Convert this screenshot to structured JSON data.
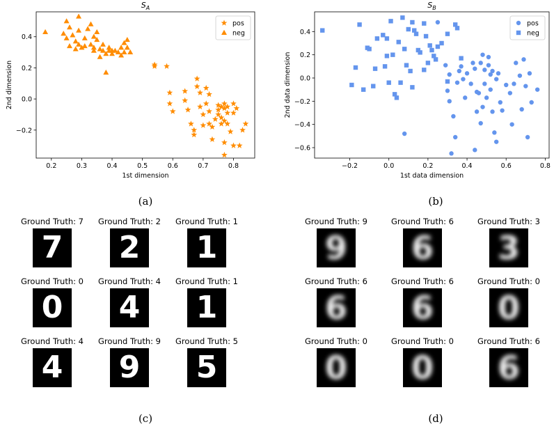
{
  "chart_data": [
    {
      "type": "scatter",
      "title": "S_A",
      "title_main": "S",
      "title_sub": "A",
      "xlabel": "1st dimension",
      "ylabel": "2nd dimension",
      "xlim": [
        0.15,
        0.87
      ],
      "ylim": [
        -0.38,
        0.56
      ],
      "xticks": [
        "0.2",
        "0.3",
        "0.4",
        "0.5",
        "0.6",
        "0.7",
        "0.8"
      ],
      "xtick_values": [
        0.2,
        0.3,
        0.4,
        0.5,
        0.6,
        0.7,
        0.8
      ],
      "yticks": [
        "0.4",
        "0.2",
        "0.0",
        "−0.2"
      ],
      "ytick_values": [
        0.4,
        0.2,
        0.0,
        -0.2
      ],
      "grid": false,
      "legend_position": "top-right",
      "color": "#ff8c00",
      "series": [
        {
          "name": "pos",
          "marker": "star",
          "points": [
            [
              0.54,
              0.22
            ],
            [
              0.54,
              0.21
            ],
            [
              0.58,
              0.21
            ],
            [
              0.59,
              0.04
            ],
            [
              0.59,
              -0.03
            ],
            [
              0.6,
              -0.08
            ],
            [
              0.64,
              0.05
            ],
            [
              0.64,
              -0.01
            ],
            [
              0.65,
              -0.07
            ],
            [
              0.66,
              -0.16
            ],
            [
              0.67,
              -0.2
            ],
            [
              0.67,
              -0.23
            ],
            [
              0.68,
              0.13
            ],
            [
              0.68,
              0.08
            ],
            [
              0.69,
              0.04
            ],
            [
              0.69,
              -0.05
            ],
            [
              0.7,
              -0.1
            ],
            [
              0.7,
              -0.17
            ],
            [
              0.71,
              0.07
            ],
            [
              0.71,
              -0.03
            ],
            [
              0.72,
              0.03
            ],
            [
              0.72,
              -0.08
            ],
            [
              0.72,
              -0.16
            ],
            [
              0.73,
              -0.18
            ],
            [
              0.73,
              -0.26
            ],
            [
              0.74,
              -0.13
            ],
            [
              0.75,
              -0.04
            ],
            [
              0.75,
              -0.07
            ],
            [
              0.75,
              -0.1
            ],
            [
              0.76,
              -0.05
            ],
            [
              0.76,
              -0.12
            ],
            [
              0.76,
              -0.16
            ],
            [
              0.77,
              -0.03
            ],
            [
              0.77,
              -0.06
            ],
            [
              0.77,
              -0.14
            ],
            [
              0.77,
              -0.28
            ],
            [
              0.77,
              -0.36
            ],
            [
              0.78,
              -0.05
            ],
            [
              0.78,
              -0.09
            ],
            [
              0.78,
              -0.16
            ],
            [
              0.79,
              -0.21
            ],
            [
              0.8,
              -0.03
            ],
            [
              0.8,
              -0.09
            ],
            [
              0.8,
              -0.3
            ],
            [
              0.81,
              -0.06
            ],
            [
              0.82,
              -0.3
            ],
            [
              0.83,
              -0.2
            ],
            [
              0.84,
              -0.16
            ]
          ]
        },
        {
          "name": "neg",
          "marker": "triangle",
          "points": [
            [
              0.18,
              0.43
            ],
            [
              0.24,
              0.42
            ],
            [
              0.25,
              0.5
            ],
            [
              0.25,
              0.39
            ],
            [
              0.26,
              0.34
            ],
            [
              0.26,
              0.46
            ],
            [
              0.27,
              0.41
            ],
            [
              0.28,
              0.37
            ],
            [
              0.28,
              0.32
            ],
            [
              0.29,
              0.53
            ],
            [
              0.29,
              0.44
            ],
            [
              0.29,
              0.35
            ],
            [
              0.3,
              0.33
            ],
            [
              0.31,
              0.39
            ],
            [
              0.32,
              0.45
            ],
            [
              0.33,
              0.48
            ],
            [
              0.33,
              0.35
            ],
            [
              0.34,
              0.4
            ],
            [
              0.34,
              0.31
            ],
            [
              0.35,
              0.43
            ],
            [
              0.35,
              0.38
            ],
            [
              0.36,
              0.32
            ],
            [
              0.36,
              0.27
            ],
            [
              0.37,
              0.35
            ],
            [
              0.37,
              0.31
            ],
            [
              0.38,
              0.17
            ],
            [
              0.38,
              0.29
            ],
            [
              0.39,
              0.33
            ],
            [
              0.4,
              0.31
            ],
            [
              0.4,
              0.29
            ],
            [
              0.41,
              0.31
            ],
            [
              0.42,
              0.3
            ],
            [
              0.43,
              0.33
            ],
            [
              0.43,
              0.28
            ],
            [
              0.44,
              0.36
            ],
            [
              0.44,
              0.3
            ],
            [
              0.45,
              0.38
            ],
            [
              0.45,
              0.33
            ],
            [
              0.46,
              0.3
            ],
            [
              0.34,
              0.33
            ],
            [
              0.31,
              0.34
            ],
            [
              0.39,
              0.31
            ]
          ]
        }
      ]
    },
    {
      "type": "scatter",
      "title": "S_B",
      "title_main": "S",
      "title_sub": "B",
      "xlabel": "1st data dimension",
      "ylabel": "2nd data dimension",
      "xlim": [
        -0.38,
        0.82
      ],
      "ylim": [
        -0.69,
        0.57
      ],
      "xticks": [
        "−0.2",
        "0.0",
        "0.2",
        "0.4",
        "0.6",
        "0.8"
      ],
      "xtick_values": [
        -0.2,
        0.0,
        0.2,
        0.4,
        0.6,
        0.8
      ],
      "yticks": [
        "0.4",
        "0.2",
        "0.0",
        "−0.2",
        "−0.4",
        "−0.6"
      ],
      "ytick_values": [
        0.4,
        0.2,
        0.0,
        -0.2,
        -0.4,
        -0.6
      ],
      "grid": false,
      "legend_position": "top-right",
      "color": "#6495ed",
      "series": [
        {
          "name": "pos",
          "marker": "circle",
          "points": [
            [
              0.08,
              -0.48
            ],
            [
              0.25,
              0.48
            ],
            [
              0.29,
              0.11
            ],
            [
              0.3,
              -0.11
            ],
            [
              0.31,
              0.03
            ],
            [
              0.31,
              -0.2
            ],
            [
              0.32,
              -0.65
            ],
            [
              0.33,
              -0.33
            ],
            [
              0.34,
              -0.51
            ],
            [
              0.35,
              -0.04
            ],
            [
              0.36,
              0.06
            ],
            [
              0.37,
              0.1
            ],
            [
              0.38,
              -0.01
            ],
            [
              0.39,
              -0.17
            ],
            [
              0.4,
              0.04
            ],
            [
              0.42,
              -0.05
            ],
            [
              0.43,
              0.13
            ],
            [
              0.44,
              0.08
            ],
            [
              0.45,
              -0.12
            ],
            [
              0.45,
              -0.29
            ],
            [
              0.46,
              -0.13
            ],
            [
              0.47,
              0.13
            ],
            [
              0.47,
              -0.39
            ],
            [
              0.48,
              -0.25
            ],
            [
              0.49,
              0.07
            ],
            [
              0.49,
              -0.05
            ],
            [
              0.5,
              -0.17
            ],
            [
              0.51,
              0.11
            ],
            [
              0.51,
              0.18
            ],
            [
              0.52,
              -0.1
            ],
            [
              0.53,
              -0.29
            ],
            [
              0.53,
              0.06
            ],
            [
              0.54,
              -0.47
            ],
            [
              0.55,
              -0.55
            ],
            [
              0.55,
              -0.01
            ],
            [
              0.56,
              0.04
            ],
            [
              0.57,
              -0.21
            ],
            [
              0.58,
              -0.28
            ],
            [
              0.6,
              -0.06
            ],
            [
              0.62,
              -0.13
            ],
            [
              0.63,
              -0.4
            ],
            [
              0.64,
              -0.05
            ],
            [
              0.65,
              0.13
            ],
            [
              0.67,
              0.02
            ],
            [
              0.68,
              -0.27
            ],
            [
              0.69,
              0.16
            ],
            [
              0.7,
              -0.07
            ],
            [
              0.71,
              -0.51
            ],
            [
              0.72,
              0.04
            ],
            [
              0.73,
              -0.21
            ],
            [
              0.76,
              -0.1
            ],
            [
              0.48,
              0.2
            ],
            [
              0.44,
              -0.62
            ],
            [
              0.52,
              0.03
            ]
          ]
        },
        {
          "name": "neg",
          "marker": "square",
          "points": [
            [
              -0.34,
              0.41
            ],
            [
              -0.19,
              -0.06
            ],
            [
              -0.17,
              0.09
            ],
            [
              -0.15,
              0.46
            ],
            [
              -0.13,
              -0.1
            ],
            [
              -0.11,
              0.26
            ],
            [
              -0.1,
              0.25
            ],
            [
              -0.08,
              -0.07
            ],
            [
              -0.07,
              0.08
            ],
            [
              -0.06,
              0.34
            ],
            [
              -0.03,
              0.37
            ],
            [
              -0.02,
              0.1
            ],
            [
              -0.01,
              0.34
            ],
            [
              -0.01,
              0.19
            ],
            [
              0.0,
              -0.04
            ],
            [
              0.01,
              0.49
            ],
            [
              0.02,
              0.2
            ],
            [
              0.03,
              -0.14
            ],
            [
              0.04,
              -0.17
            ],
            [
              0.05,
              0.31
            ],
            [
              0.06,
              -0.04
            ],
            [
              0.07,
              0.52
            ],
            [
              0.08,
              0.25
            ],
            [
              0.09,
              0.11
            ],
            [
              0.1,
              0.42
            ],
            [
              0.11,
              0.06
            ],
            [
              0.12,
              0.48
            ],
            [
              0.13,
              0.41
            ],
            [
              0.14,
              0.38
            ],
            [
              0.15,
              0.24
            ],
            [
              0.16,
              0.22
            ],
            [
              0.18,
              0.47
            ],
            [
              0.19,
              0.36
            ],
            [
              0.2,
              0.13
            ],
            [
              0.21,
              0.28
            ],
            [
              0.22,
              0.24
            ],
            [
              0.23,
              0.19
            ],
            [
              0.24,
              0.16
            ],
            [
              0.25,
              0.27
            ],
            [
              0.27,
              0.3
            ],
            [
              0.3,
              0.38
            ],
            [
              0.34,
              0.46
            ],
            [
              0.35,
              0.43
            ],
            [
              0.37,
              0.17
            ],
            [
              0.18,
              0.07
            ],
            [
              0.3,
              -0.03
            ],
            [
              0.12,
              -0.08
            ]
          ]
        }
      ]
    }
  ],
  "captions": {
    "a": "(a)",
    "b": "(b)",
    "c": "(c)",
    "d": "(d)"
  },
  "grid_c": [
    {
      "label": "Ground Truth: 7",
      "digit": "7"
    },
    {
      "label": "Ground Truth: 2",
      "digit": "2"
    },
    {
      "label": "Ground Truth: 1",
      "digit": "1"
    },
    {
      "label": "Ground Truth: 0",
      "digit": "0"
    },
    {
      "label": "Ground Truth: 4",
      "digit": "4"
    },
    {
      "label": "Ground Truth: 1",
      "digit": "1"
    },
    {
      "label": "Ground Truth: 4",
      "digit": "4"
    },
    {
      "label": "Ground Truth: 9",
      "digit": "9"
    },
    {
      "label": "Ground Truth: 5",
      "digit": "5"
    }
  ],
  "grid_d": [
    {
      "label": "Ground Truth: 9",
      "digit": "9"
    },
    {
      "label": "Ground Truth: 6",
      "digit": "6"
    },
    {
      "label": "Ground Truth: 3",
      "digit": "3"
    },
    {
      "label": "Ground Truth: 6",
      "digit": "6"
    },
    {
      "label": "Ground Truth: 6",
      "digit": "6"
    },
    {
      "label": "Ground Truth: 0",
      "digit": "0"
    },
    {
      "label": "Ground Truth: 0",
      "digit": "0"
    },
    {
      "label": "Ground Truth: 0",
      "digit": "0"
    },
    {
      "label": "Ground Truth: 6",
      "digit": "6"
    }
  ]
}
